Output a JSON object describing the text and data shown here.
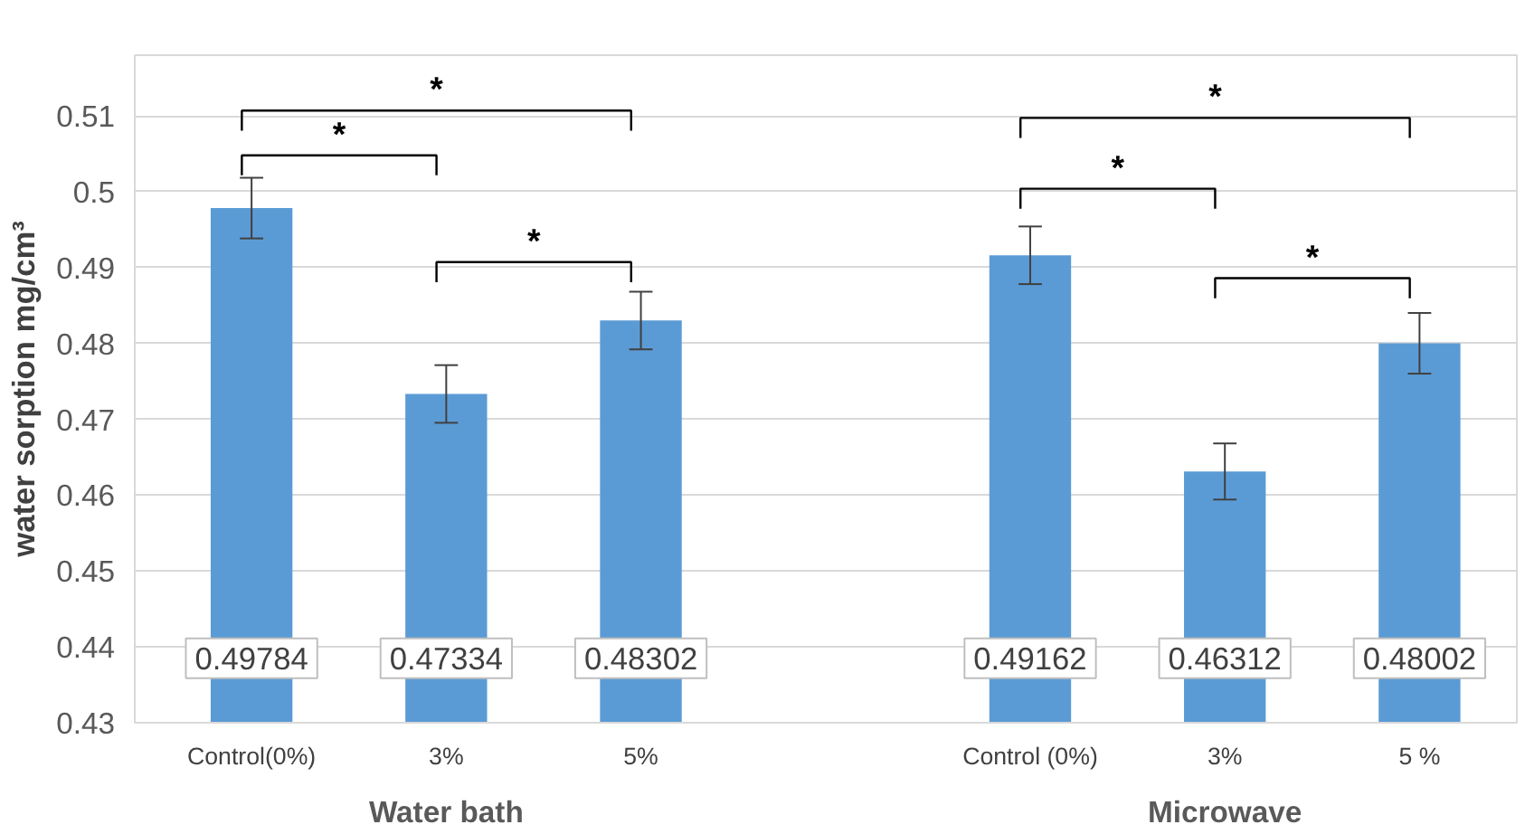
{
  "chart_data": {
    "type": "bar",
    "ylabel": "water sorption mg/cm³",
    "categories": [
      "Control(0%)",
      "3%",
      "5%",
      null,
      "Control (0%)",
      "3%",
      "5 %"
    ],
    "values": [
      0.49784,
      0.47334,
      0.48302,
      null,
      0.49162,
      0.46312,
      0.48002
    ],
    "errors": [
      0.004,
      0.0038,
      0.0038,
      null,
      0.0038,
      0.0037,
      0.004
    ],
    "color": "#5b9bd5",
    "ylim": [
      0.43,
      0.518
    ],
    "yticks": [
      0.43,
      0.44,
      0.45,
      0.46,
      0.47,
      0.48,
      0.49,
      0.5,
      0.51
    ],
    "grid": "y",
    "data_labels": true,
    "annotations": [
      "Water bath",
      "Microwave",
      "*",
      "*",
      "*",
      "*",
      "*",
      "*"
    ]
  }
}
